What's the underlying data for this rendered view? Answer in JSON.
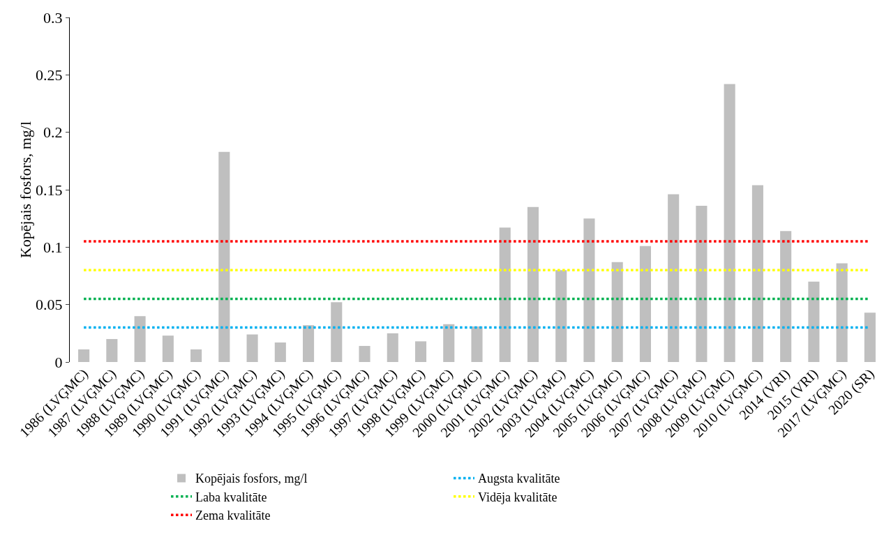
{
  "chart_data": {
    "type": "bar",
    "ylabel": "Kopējais fosfors, mg/l",
    "categories": [
      "1986 (LVĢMC)",
      "1987 (LVĢMC)",
      "1988 (LVĢMC)",
      "1989 (LVĢMC)",
      "1990 (LVĢMC)",
      "1991 (LVĢMC)",
      "1992 (LVĢMC)",
      "1993 (LVĢMC)",
      "1994 (LVĢMC)",
      "1995 (LVĢMC)",
      "1996 (LVĢMC)",
      "1997 (LVĢMC)",
      "1998 (LVĢMC)",
      "1999 (LVĢMC)",
      "2000 (LVĢMC)",
      "2001 (LVĢMC)",
      "2002 (LVĢMC)",
      "2003 (LVĢMC)",
      "2004 (LVĢMC)",
      "2005 (LVĢMC)",
      "2006 (LVĢMC)",
      "2007 (LVĢMC)",
      "2008 (LVĢMC)",
      "2009 (LVĢMC)",
      "2010 (LVĢMC)",
      "2014 (VRI)",
      "2015 (VRI)",
      "2017 (LVĢMC)",
      "2020 (SR)"
    ],
    "series": [
      {
        "name": "Kopējais fosfors, mg/l",
        "color": "#bfbfbf",
        "values": [
          0.011,
          0.02,
          0.04,
          0.023,
          0.011,
          0.183,
          0.024,
          0.017,
          0.032,
          0.052,
          0.014,
          0.025,
          0.018,
          0.033,
          0.031,
          0.117,
          0.135,
          0.08,
          0.125,
          0.087,
          0.101,
          0.146,
          0.136,
          0.242,
          0.154,
          0.114,
          0.07,
          0.086,
          0.043
        ]
      },
      {
        "name": "Augsta kvalitāte",
        "type": "line",
        "line_style": "dotted",
        "color": "#00b0f0",
        "values": [
          0.03,
          0.03,
          0.03,
          0.03,
          0.03,
          0.03,
          0.03,
          0.03,
          0.03,
          0.03,
          0.03,
          0.03,
          0.03,
          0.03,
          0.03,
          0.03,
          0.03,
          0.03,
          0.03,
          0.03,
          0.03,
          0.03,
          0.03,
          0.03,
          0.03,
          0.03,
          0.03,
          0.03,
          0.03
        ]
      },
      {
        "name": "Laba kvalitāte",
        "type": "line",
        "line_style": "dotted",
        "color": "#00b050",
        "values": [
          0.055,
          0.055,
          0.055,
          0.055,
          0.055,
          0.055,
          0.055,
          0.055,
          0.055,
          0.055,
          0.055,
          0.055,
          0.055,
          0.055,
          0.055,
          0.055,
          0.055,
          0.055,
          0.055,
          0.055,
          0.055,
          0.055,
          0.055,
          0.055,
          0.055,
          0.055,
          0.055,
          0.055,
          0.055
        ]
      },
      {
        "name": "Vidēja kvalitāte",
        "type": "line",
        "line_style": "dotted",
        "color": "#ffff00",
        "values": [
          0.08,
          0.08,
          0.08,
          0.08,
          0.08,
          0.08,
          0.08,
          0.08,
          0.08,
          0.08,
          0.08,
          0.08,
          0.08,
          0.08,
          0.08,
          0.08,
          0.08,
          0.08,
          0.08,
          0.08,
          0.08,
          0.08,
          0.08,
          0.08,
          0.08,
          0.08,
          0.08,
          0.08,
          0.08
        ]
      },
      {
        "name": "Zema kvalitāte",
        "type": "line",
        "line_style": "dotted",
        "color": "#ff0000",
        "values": [
          0.105,
          0.105,
          0.105,
          0.105,
          0.105,
          0.105,
          0.105,
          0.105,
          0.105,
          0.105,
          0.105,
          0.105,
          0.105,
          0.105,
          0.105,
          0.105,
          0.105,
          0.105,
          0.105,
          0.105,
          0.105,
          0.105,
          0.105,
          0.105,
          0.105,
          0.105,
          0.105,
          0.105,
          0.105
        ]
      }
    ],
    "ylim": [
      0,
      0.3
    ],
    "yticks": [
      0,
      0.05,
      0.1,
      0.15,
      0.2,
      0.25,
      0.3
    ],
    "grid": false,
    "legend": "bottom"
  }
}
